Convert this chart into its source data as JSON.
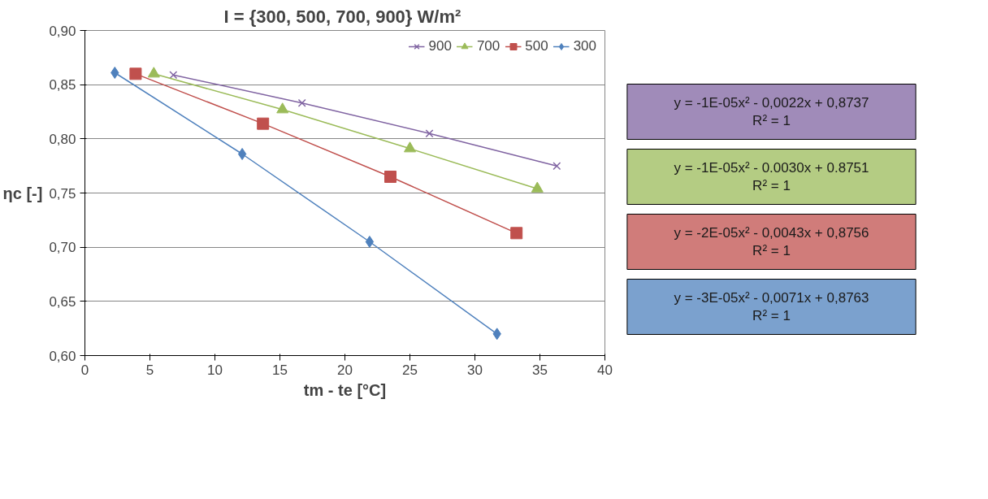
{
  "chart_data": {
    "type": "line",
    "title": "I = {300, 500, 700, 900}  W/m²",
    "xlabel": "tm - te [°C]",
    "ylabel": "ηc [-]",
    "series": [
      {
        "name": "900",
        "color": "#8064a2",
        "marker": "cross",
        "x": [
          6.8,
          16.7,
          26.5,
          36.3
        ],
        "values": [
          0.859,
          0.833,
          0.805,
          0.775
        ]
      },
      {
        "name": "700",
        "color": "#9bbb59",
        "marker": "triangle",
        "x": [
          5.3,
          15.2,
          25.0,
          34.8
        ],
        "values": [
          0.86,
          0.827,
          0.791,
          0.754
        ]
      },
      {
        "name": "500",
        "color": "#c0504d",
        "marker": "square",
        "x": [
          3.9,
          13.7,
          23.5,
          33.2
        ],
        "values": [
          0.86,
          0.814,
          0.765,
          0.713
        ]
      },
      {
        "name": "300",
        "color": "#4f81bd",
        "marker": "diamond",
        "x": [
          2.3,
          12.1,
          21.9,
          31.7
        ],
        "values": [
          0.861,
          0.786,
          0.705,
          0.62
        ]
      }
    ],
    "annotations": [
      "y = -1E-05x² - 0,0022x + 0,8737\nR² = 1",
      "y = -1E-05x² - 0.0030x + 0.8751\nR² = 1",
      "y = -2E-05x² - 0,0043x + 0,8756\nR² = 1",
      "y = -3E-05x² - 0,0071x + 0,8763\nR² = 1"
    ],
    "xlim": [
      0,
      40
    ],
    "xticks": [
      0,
      5,
      10,
      15,
      20,
      25,
      30,
      35,
      40
    ],
    "ylim": [
      0.6,
      0.9
    ],
    "yticks": [
      {
        "value": 0.6,
        "label": "0,60"
      },
      {
        "value": 0.65,
        "label": "0,65"
      },
      {
        "value": 0.7,
        "label": "0,70"
      },
      {
        "value": 0.75,
        "label": "0,75"
      },
      {
        "value": 0.8,
        "label": "0,80"
      },
      {
        "value": 0.85,
        "label": "0,85"
      },
      {
        "value": 0.9,
        "label": "0,90"
      }
    ],
    "grid": "y",
    "legend": "top right"
  }
}
